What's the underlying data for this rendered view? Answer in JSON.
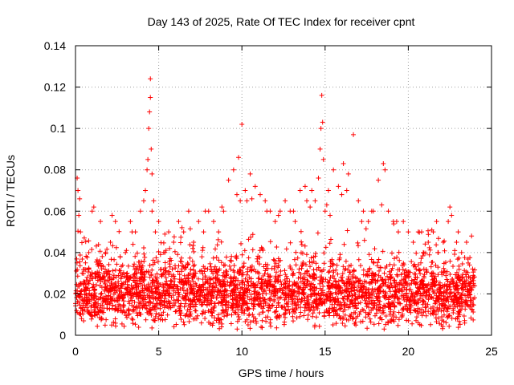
{
  "chart_data": {
    "type": "scatter",
    "title": "Day 143 of 2025, Rate Of TEC Index for receiver cpnt",
    "xlabel": "GPS time / hours",
    "ylabel": "ROTI / TECUs",
    "xlim": [
      0,
      25
    ],
    "ylim": [
      0,
      0.14
    ],
    "xticks": [
      0,
      5,
      10,
      15,
      20,
      25
    ],
    "xtick_labels": [
      "0",
      "5",
      "10",
      "15",
      "20",
      "25"
    ],
    "yticks": [
      0,
      0.02,
      0.04,
      0.06,
      0.08,
      0.1,
      0.12,
      0.14
    ],
    "ytick_labels": [
      "0",
      "0.02",
      "0.04",
      "0.06",
      "0.08",
      "0.1",
      "0.12",
      "0.14"
    ],
    "grid": true,
    "marker": "+",
    "marker_color": "#ff0000",
    "series": [
      {
        "name": "ROTI",
        "x": [
          0.1,
          0.2,
          0.3,
          0.4,
          0.5,
          0.6,
          0.8,
          1.0,
          1.2,
          1.5,
          1.8,
          2.1,
          2.4,
          2.7,
          3.0,
          3.3,
          3.6,
          3.9,
          4.1,
          4.2,
          4.3,
          4.35,
          4.4,
          4.45,
          4.5,
          4.5,
          4.55,
          4.6,
          4.6,
          4.7,
          4.8,
          5.0,
          5.3,
          5.6,
          5.9,
          6.2,
          6.5,
          6.8,
          7.1,
          7.4,
          7.7,
          8.0,
          8.3,
          8.6,
          8.9,
          9.2,
          9.5,
          9.8,
          10.0,
          10.2,
          10.5,
          10.8,
          11.1,
          11.4,
          11.7,
          12.0,
          12.3,
          12.6,
          12.9,
          13.2,
          13.5,
          13.8,
          14.1,
          14.4,
          14.6,
          14.7,
          14.75,
          14.8,
          14.85,
          14.9,
          15.0,
          15.2,
          15.5,
          15.8,
          16.1,
          16.4,
          16.7,
          17.0,
          17.3,
          17.6,
          17.9,
          18.2,
          18.5,
          18.6,
          18.8,
          19.1,
          19.4,
          19.7,
          20.0,
          20.3,
          20.6,
          20.9,
          21.2,
          21.5,
          21.8,
          22.1,
          22.4,
          22.5,
          22.6,
          22.9,
          23.2,
          23.5,
          23.8,
          0.15,
          0.25,
          1.1,
          2.2,
          3.4,
          6.4,
          7.8,
          8.8,
          9.7,
          9.9,
          10.3,
          10.6,
          11.5,
          12.2,
          13.1,
          13.9,
          14.2,
          15.1,
          15.3,
          16.0,
          16.3,
          17.2,
          17.8,
          18.4,
          19.3,
          20.8,
          21.7,
          23.0
        ],
        "y": [
          0.076,
          0.058,
          0.05,
          0.03,
          0.025,
          0.035,
          0.04,
          0.06,
          0.03,
          0.055,
          0.04,
          0.045,
          0.055,
          0.03,
          0.04,
          0.055,
          0.05,
          0.06,
          0.065,
          0.07,
          0.08,
          0.085,
          0.1,
          0.108,
          0.115,
          0.124,
          0.09,
          0.078,
          0.06,
          0.065,
          0.05,
          0.055,
          0.04,
          0.05,
          0.045,
          0.055,
          0.05,
          0.06,
          0.045,
          0.055,
          0.05,
          0.06,
          0.055,
          0.05,
          0.06,
          0.075,
          0.08,
          0.086,
          0.102,
          0.07,
          0.078,
          0.072,
          0.068,
          0.065,
          0.06,
          0.055,
          0.06,
          0.065,
          0.06,
          0.055,
          0.07,
          0.072,
          0.062,
          0.065,
          0.076,
          0.09,
          0.1,
          0.116,
          0.103,
          0.085,
          0.06,
          0.07,
          0.08,
          0.072,
          0.083,
          0.078,
          0.097,
          0.065,
          0.06,
          0.055,
          0.06,
          0.075,
          0.083,
          0.08,
          0.06,
          0.055,
          0.05,
          0.055,
          0.05,
          0.045,
          0.05,
          0.04,
          0.045,
          0.05,
          0.04,
          0.045,
          0.055,
          0.062,
          0.058,
          0.045,
          0.04,
          0.045,
          0.048,
          0.07,
          0.066,
          0.062,
          0.058,
          0.05,
          0.052,
          0.06,
          0.062,
          0.068,
          0.065,
          0.065,
          0.066,
          0.06,
          0.058,
          0.06,
          0.065,
          0.07,
          0.063,
          0.058,
          0.068,
          0.07,
          0.055,
          0.06,
          0.063,
          0.055,
          0.05,
          0.055,
          0.05
        ]
      }
    ],
    "dense_band": {
      "description_free": true,
      "baseline": 0.02,
      "spread": 0.012,
      "floor": 0.003,
      "points": 11000,
      "x_range": [
        0,
        24
      ]
    }
  }
}
